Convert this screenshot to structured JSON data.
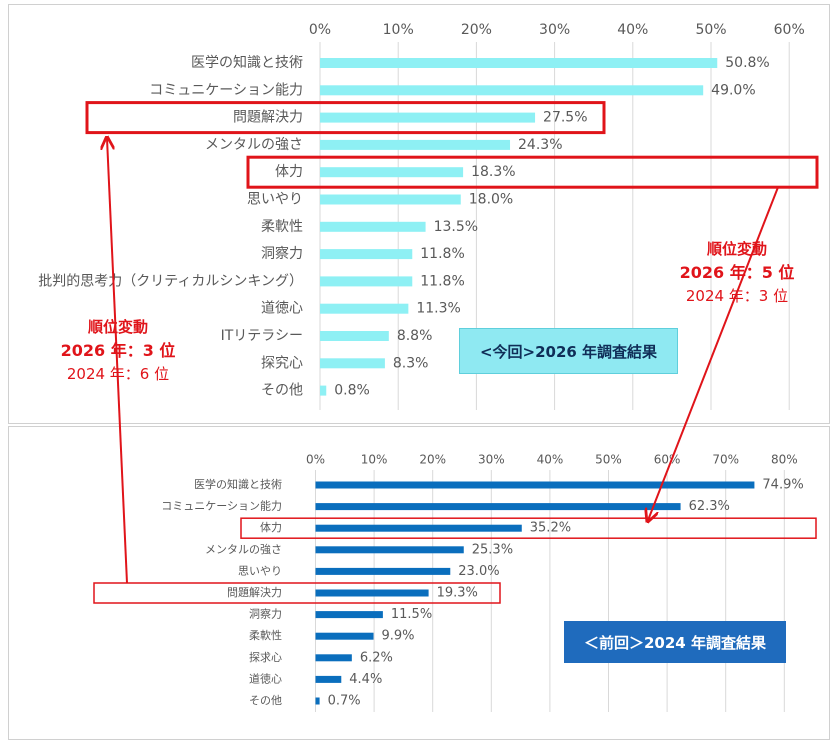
{
  "chart_data": [
    {
      "type": "bar",
      "orientation": "horizontal",
      "title": "<今回>2026 年調査結果",
      "categories": [
        "医学の知識と技術",
        "コミュニケーション能力",
        "問題解決力",
        "メンタルの強さ",
        "体力",
        "思いやり",
        "柔軟性",
        "洞察力",
        "批判的思考力（クリティカルシンキング）",
        "道徳心",
        "ITリテラシー",
        "探究心",
        "その他"
      ],
      "values": [
        50.8,
        49.0,
        27.5,
        24.3,
        18.3,
        18.0,
        13.5,
        11.8,
        11.8,
        11.3,
        8.8,
        8.3,
        0.8
      ],
      "value_labels": [
        "50.8%",
        "49.0%",
        "27.5%",
        "24.3%",
        "18.3%",
        "18.0%",
        "13.5%",
        "11.8%",
        "11.8%",
        "11.3%",
        "8.8%",
        "8.3%",
        "0.8%"
      ],
      "xlim": [
        0,
        60
      ],
      "ticks": [
        "0%",
        "10%",
        "20%",
        "30%",
        "40%",
        "50%",
        "60%"
      ],
      "grid": true,
      "bar_color": "#8ef0f4",
      "highlighted": [
        "問題解決力",
        "体力"
      ]
    },
    {
      "type": "bar",
      "orientation": "horizontal",
      "title": "＜前回＞2024 年調査結果",
      "categories": [
        "医学の知識と技術",
        "コミュニケーション能力",
        "体力",
        "メンタルの強さ",
        "思いやり",
        "問題解決力",
        "洞察力",
        "柔軟性",
        "探求心",
        "道徳心",
        "その他"
      ],
      "values": [
        74.9,
        62.3,
        35.2,
        25.3,
        23.0,
        19.3,
        11.5,
        9.9,
        6.2,
        4.4,
        0.7
      ],
      "value_labels": [
        "74.9%",
        "62.3%",
        "35.2%",
        "25.3%",
        "23.0%",
        "19.3%",
        "11.5%",
        "9.9%",
        "6.2%",
        "4.4%",
        "0.7%"
      ],
      "xlim": [
        0,
        80
      ],
      "ticks": [
        "0%",
        "10%",
        "20%",
        "30%",
        "40%",
        "50%",
        "60%",
        "70%",
        "80%"
      ],
      "grid": true,
      "bar_color": "#0a6ebd",
      "highlighted": [
        "体力",
        "問題解決力"
      ]
    }
  ],
  "badges": {
    "top": "<今回>2026 年調査結果",
    "bottom": "＜前回＞2024 年調査結果"
  },
  "callouts": {
    "left": {
      "heading": "順位変動",
      "now": "2026 年：3 位",
      "prev": "2024 年：6 位"
    },
    "right": {
      "heading": "順位変動",
      "now": "2026 年：5 位",
      "prev": "2024 年：3 位"
    }
  },
  "colors": {
    "accent_red": "#e0141a",
    "grid": "#d9d9d9",
    "text": "#595959"
  }
}
